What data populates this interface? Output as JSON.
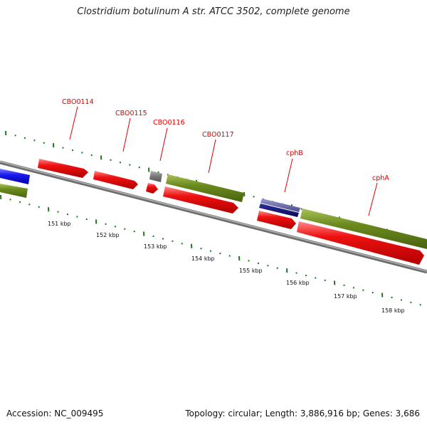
{
  "title": "Clostridium botulinum A str. ATCC 3502, complete genome",
  "footer": {
    "accession": "Accession: NC_009495",
    "summary": "Topology: circular; Length: 3,886,916 bp; Genes: 3,686"
  },
  "colors": {
    "backbone": "#8a8a8a",
    "cds_red": "#ee1111",
    "cds_green": "#6b8a1d",
    "cds_blue": "#1a1aee",
    "cds_navy": "#101070",
    "cds_purple": "#5a5a9a",
    "cds_gray": "#777777",
    "tick": "#1a7a1a",
    "gene_label": "#dd0000"
  },
  "kbp_labels": [
    "151 kbp",
    "152 kbp",
    "153 kbp",
    "154 kbp",
    "155 kbp",
    "156 kbp",
    "157 kbp",
    "158 kbp"
  ],
  "gene_labels": [
    "CBO0114",
    "CBO0115",
    "CBO0116",
    "CBO0117",
    "cphB",
    "cphA"
  ]
}
